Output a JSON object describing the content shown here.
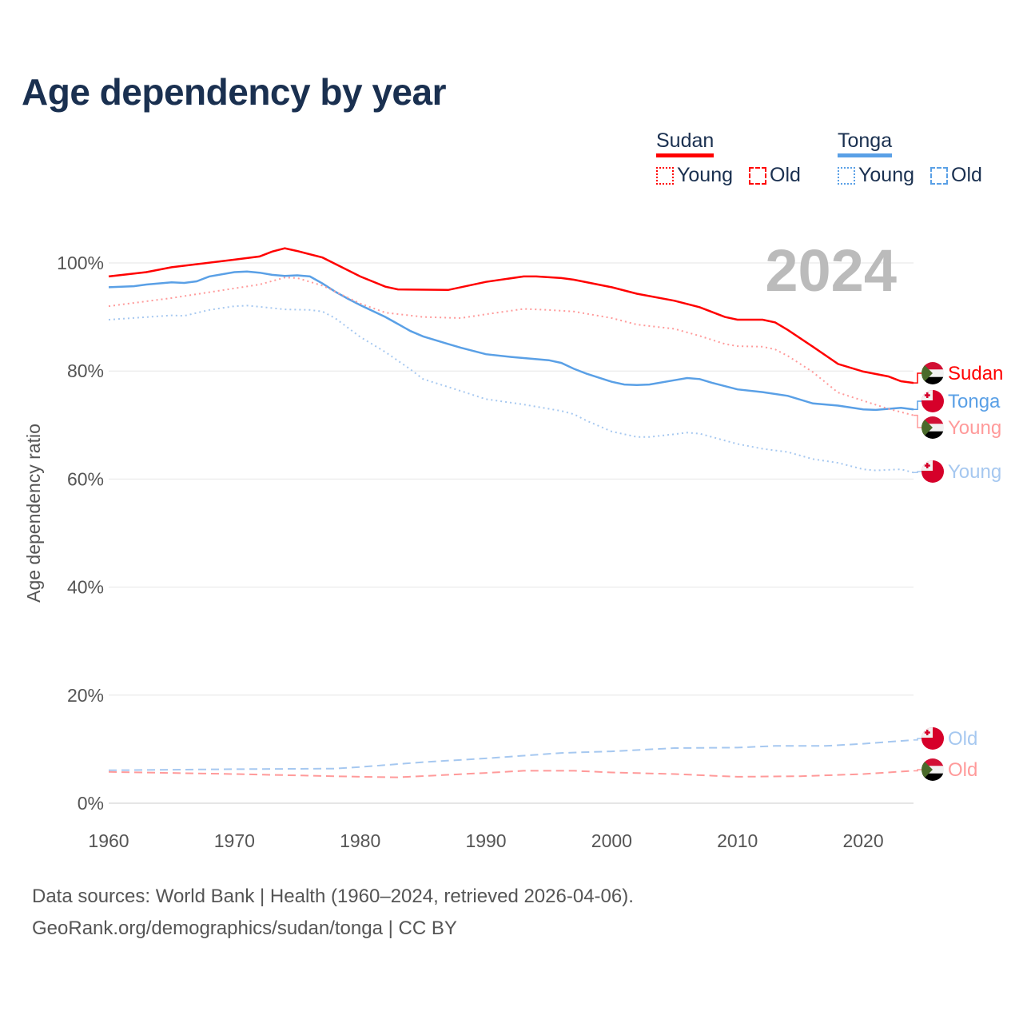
{
  "title": "Age dependency by year",
  "legend": [
    {
      "country": "Sudan",
      "color": "#ff0000",
      "young_label": "Young",
      "old_label": "Old"
    },
    {
      "country": "Tonga",
      "color": "#5aa0e6",
      "young_label": "Young",
      "old_label": "Old"
    }
  ],
  "year_watermark": "2024",
  "footer": {
    "line1": "Data sources: World Bank | Health (1960–2024, retrieved 2026-04-06).",
    "line2": "GeoRank.org/demographics/sudan/tonga | CC BY"
  },
  "chart_data": {
    "type": "line",
    "title": "Age dependency by year",
    "xlabel": "",
    "ylabel": "Age dependency ratio",
    "xlim": [
      1960,
      2024
    ],
    "ylim": [
      0,
      105
    ],
    "x_ticks": [
      "1960",
      "1970",
      "1980",
      "1990",
      "2000",
      "2010",
      "2020"
    ],
    "y_ticks": [
      {
        "value": 0,
        "label": "0%"
      },
      {
        "value": 20,
        "label": "20%"
      },
      {
        "value": 40,
        "label": "40%"
      },
      {
        "value": 60,
        "label": "60%"
      },
      {
        "value": 80,
        "label": "80%"
      },
      {
        "value": 100,
        "label": "100%"
      }
    ],
    "grid": true,
    "series": [
      {
        "name": "Sudan",
        "end_label": "Sudan",
        "country": "sudan",
        "color": "#ff0000",
        "style": "solid",
        "points": [
          [
            1960,
            97.5
          ],
          [
            1963,
            98.3
          ],
          [
            1965,
            99.2
          ],
          [
            1970,
            100.6
          ],
          [
            1972,
            101.2
          ],
          [
            1973,
            102.1
          ],
          [
            1974,
            102.7
          ],
          [
            1975,
            102.2
          ],
          [
            1977,
            101
          ],
          [
            1980,
            97.5
          ],
          [
            1982,
            95.6
          ],
          [
            1983,
            95.1
          ],
          [
            1987,
            95.0
          ],
          [
            1990,
            96.5
          ],
          [
            1993,
            97.5
          ],
          [
            1994,
            97.5
          ],
          [
            1996,
            97.2
          ],
          [
            1997,
            96.9
          ],
          [
            2000,
            95.5
          ],
          [
            2002,
            94.3
          ],
          [
            2005,
            93
          ],
          [
            2007,
            91.8
          ],
          [
            2009,
            90
          ],
          [
            2010,
            89.5
          ],
          [
            2012,
            89.5
          ],
          [
            2013,
            89
          ],
          [
            2014,
            87.6
          ],
          [
            2016,
            84.5
          ],
          [
            2018,
            81.3
          ],
          [
            2020,
            79.9
          ],
          [
            2022,
            79
          ],
          [
            2023,
            78.1
          ],
          [
            2024,
            77.8
          ]
        ]
      },
      {
        "name": "Tonga",
        "end_label": "Tonga",
        "country": "tonga",
        "color": "#5aa0e6",
        "style": "solid",
        "points": [
          [
            1960,
            95.5
          ],
          [
            1962,
            95.7
          ],
          [
            1963,
            96.0
          ],
          [
            1965,
            96.4
          ],
          [
            1966,
            96.3
          ],
          [
            1967,
            96.6
          ],
          [
            1968,
            97.5
          ],
          [
            1970,
            98.3
          ],
          [
            1971,
            98.4
          ],
          [
            1972,
            98.2
          ],
          [
            1973,
            97.8
          ],
          [
            1974,
            97.6
          ],
          [
            1975,
            97.7
          ],
          [
            1976,
            97.5
          ],
          [
            1977,
            96.2
          ],
          [
            1978,
            94.7
          ],
          [
            1979,
            93.4
          ],
          [
            1980,
            92.2
          ],
          [
            1982,
            90
          ],
          [
            1983,
            88.7
          ],
          [
            1984,
            87.4
          ],
          [
            1985,
            86.4
          ],
          [
            1987,
            85.0
          ],
          [
            1988,
            84.3
          ],
          [
            1990,
            83.1
          ],
          [
            1992,
            82.6
          ],
          [
            1995,
            82
          ],
          [
            1996,
            81.5
          ],
          [
            1997,
            80.4
          ],
          [
            1998,
            79.5
          ],
          [
            2000,
            78.0
          ],
          [
            2001,
            77.5
          ],
          [
            2002,
            77.4
          ],
          [
            2003,
            77.5
          ],
          [
            2005,
            78.3
          ],
          [
            2006,
            78.7
          ],
          [
            2007,
            78.5
          ],
          [
            2008,
            77.8
          ],
          [
            2010,
            76.6
          ],
          [
            2012,
            76.1
          ],
          [
            2014,
            75.4
          ],
          [
            2016,
            74
          ],
          [
            2018,
            73.6
          ],
          [
            2020,
            72.9
          ],
          [
            2021,
            72.8
          ],
          [
            2023,
            73.2
          ],
          [
            2024,
            72.9
          ]
        ]
      },
      {
        "name": "Sudan Young",
        "end_label": "Young",
        "country": "sudan",
        "color": "#ff9a9a",
        "style": "dotted",
        "points": [
          [
            1960,
            92
          ],
          [
            1965,
            93.5
          ],
          [
            1970,
            95.3
          ],
          [
            1972,
            96
          ],
          [
            1974,
            97.3
          ],
          [
            1975,
            97.2
          ],
          [
            1977,
            95.8
          ],
          [
            1980,
            92.5
          ],
          [
            1982,
            90.8
          ],
          [
            1985,
            90
          ],
          [
            1988,
            89.8
          ],
          [
            1990,
            90.5
          ],
          [
            1993,
            91.5
          ],
          [
            1995,
            91.3
          ],
          [
            1997,
            91
          ],
          [
            2000,
            89.8
          ],
          [
            2002,
            88.6
          ],
          [
            2005,
            87.8
          ],
          [
            2007,
            86.5
          ],
          [
            2009,
            85
          ],
          [
            2010,
            84.6
          ],
          [
            2012,
            84.5
          ],
          [
            2013,
            84
          ],
          [
            2014,
            82.8
          ],
          [
            2016,
            79.8
          ],
          [
            2018,
            76
          ],
          [
            2020,
            74.5
          ],
          [
            2022,
            73
          ],
          [
            2024,
            71.8
          ]
        ]
      },
      {
        "name": "Tonga Young",
        "end_label": "Young",
        "country": "tonga",
        "color": "#a6c8f0",
        "style": "dotted",
        "points": [
          [
            1960,
            89.5
          ],
          [
            1965,
            90.3
          ],
          [
            1966,
            90.2
          ],
          [
            1968,
            91.3
          ],
          [
            1970,
            92.0
          ],
          [
            1971,
            92.1
          ],
          [
            1972,
            91.9
          ],
          [
            1974,
            91.4
          ],
          [
            1976,
            91.3
          ],
          [
            1977,
            91
          ],
          [
            1978,
            89.8
          ],
          [
            1980,
            86.3
          ],
          [
            1982,
            83.5
          ],
          [
            1984,
            80.3
          ],
          [
            1985,
            78.5
          ],
          [
            1988,
            76.3
          ],
          [
            1990,
            74.8
          ],
          [
            1993,
            73.8
          ],
          [
            1996,
            72.6
          ],
          [
            1997,
            72
          ],
          [
            1998,
            70.8
          ],
          [
            2000,
            68.8
          ],
          [
            2002,
            67.8
          ],
          [
            2003,
            67.8
          ],
          [
            2005,
            68.3
          ],
          [
            2006,
            68.6
          ],
          [
            2007,
            68.4
          ],
          [
            2010,
            66.5
          ],
          [
            2012,
            65.6
          ],
          [
            2014,
            65
          ],
          [
            2016,
            63.7
          ],
          [
            2018,
            63
          ],
          [
            2020,
            61.8
          ],
          [
            2021,
            61.6
          ],
          [
            2023,
            61.8
          ],
          [
            2024,
            61.2
          ]
        ]
      },
      {
        "name": "Tonga Old",
        "end_label": "Old",
        "country": "tonga",
        "color": "#a6c8f0",
        "style": "dashed",
        "points": [
          [
            1960,
            6.1
          ],
          [
            1970,
            6.3
          ],
          [
            1978,
            6.4
          ],
          [
            1980,
            6.7
          ],
          [
            1985,
            7.6
          ],
          [
            1990,
            8.3
          ],
          [
            1996,
            9.3
          ],
          [
            2000,
            9.6
          ],
          [
            2005,
            10.2
          ],
          [
            2010,
            10.3
          ],
          [
            2013,
            10.6
          ],
          [
            2017,
            10.6
          ],
          [
            2020,
            11
          ],
          [
            2024,
            11.7
          ]
        ]
      },
      {
        "name": "Sudan Old",
        "end_label": "Old",
        "country": "sudan",
        "color": "#ff9a9a",
        "style": "dashed",
        "points": [
          [
            1960,
            5.8
          ],
          [
            1970,
            5.4
          ],
          [
            1980,
            4.9
          ],
          [
            1983,
            4.8
          ],
          [
            1990,
            5.6
          ],
          [
            1993,
            6.0
          ],
          [
            1997,
            6.0
          ],
          [
            2000,
            5.7
          ],
          [
            2005,
            5.4
          ],
          [
            2010,
            4.9
          ],
          [
            2015,
            5.0
          ],
          [
            2020,
            5.4
          ],
          [
            2024,
            6.0
          ]
        ]
      }
    ]
  }
}
